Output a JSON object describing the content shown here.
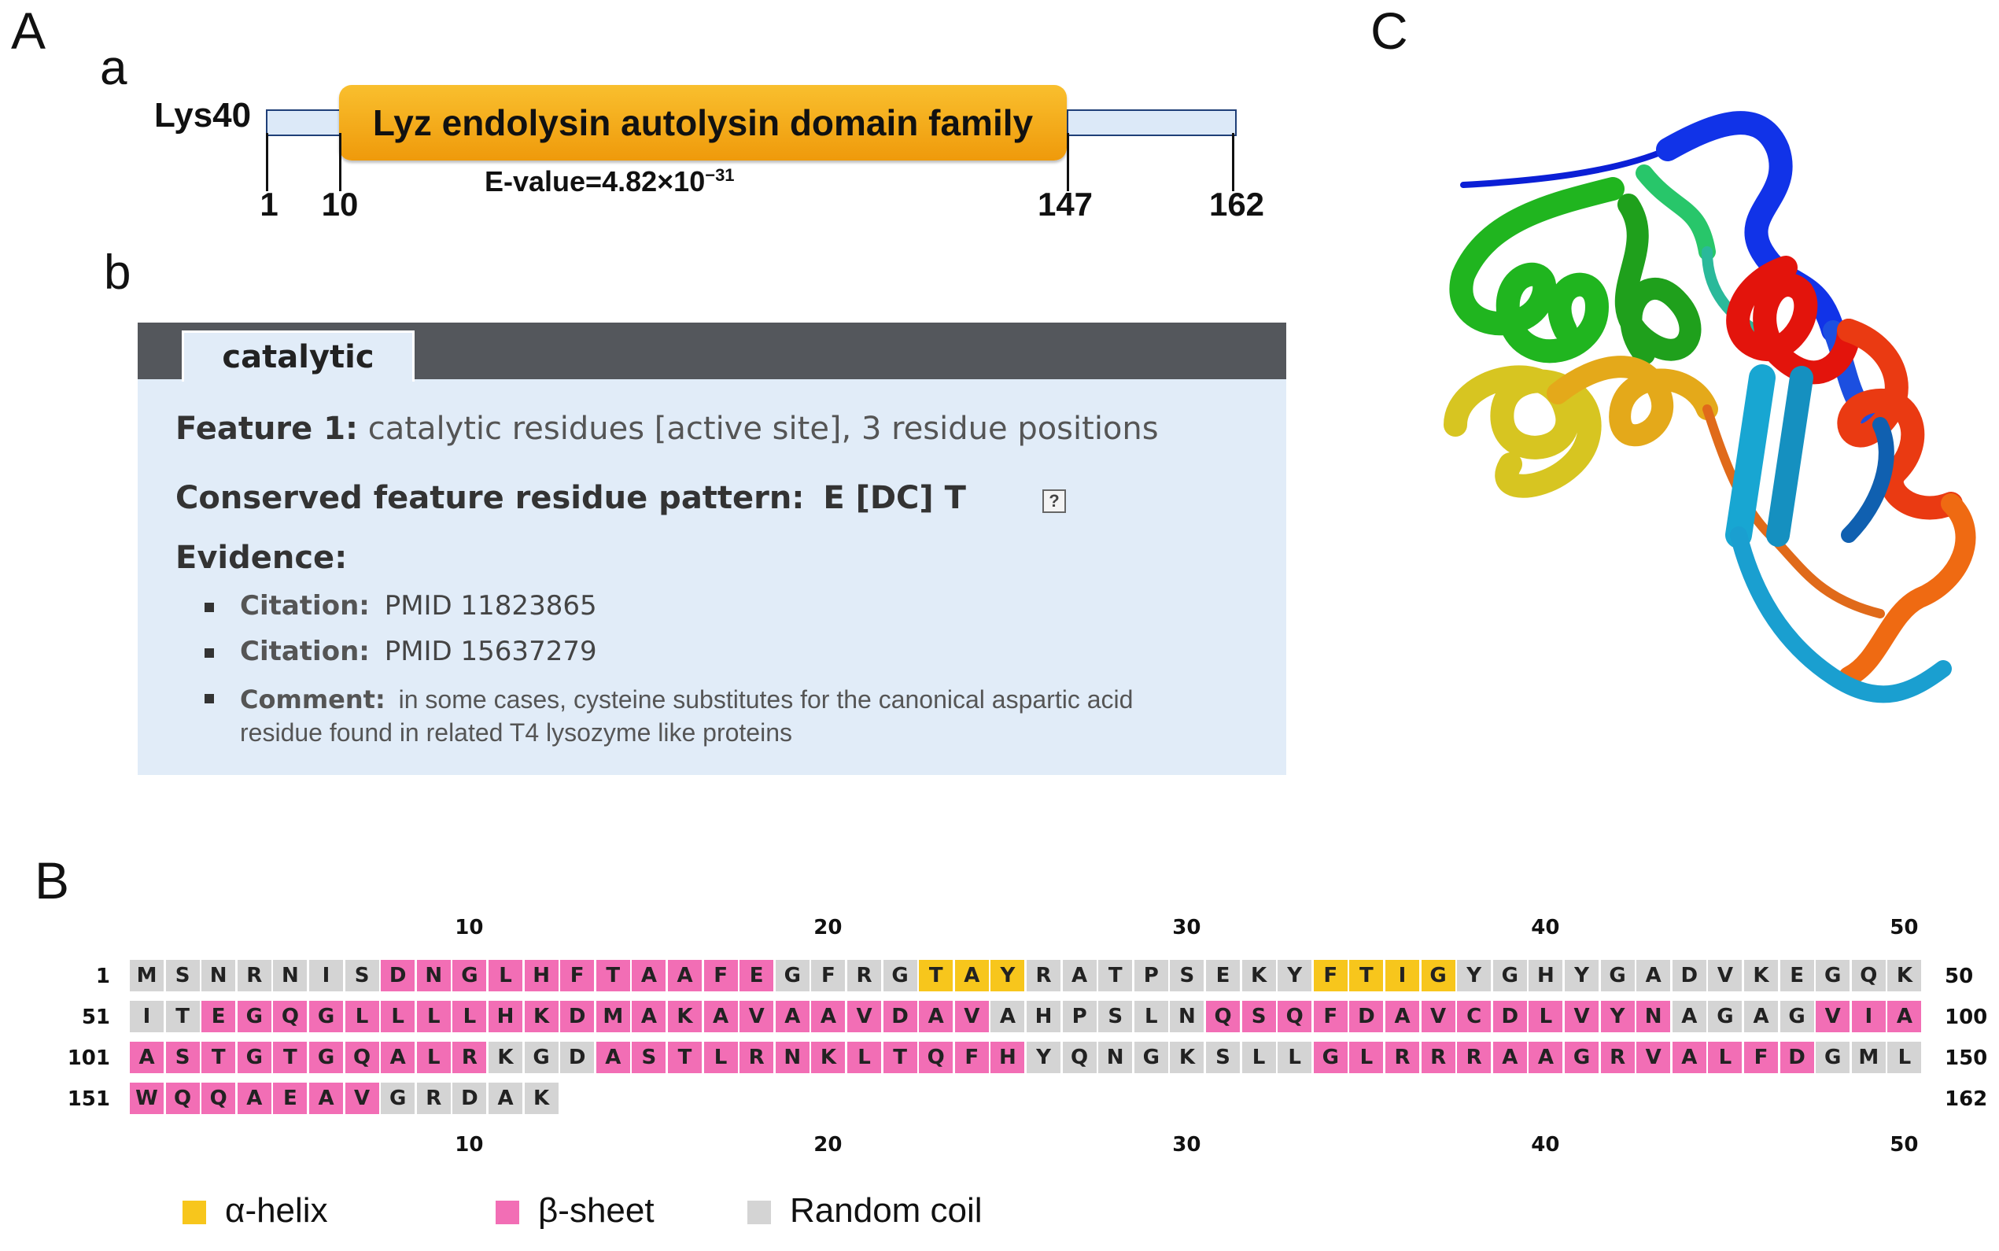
{
  "panels": {
    "A": "A",
    "a": "a",
    "b": "b",
    "B": "B",
    "C": "C"
  },
  "domain_diagram": {
    "protein_name": "Lys40",
    "domain_name": "Lyz endolysin autolysin domain family",
    "evalue_prefix": "E-value=4.82×10",
    "evalue_exponent": "−31",
    "positions": [
      "1",
      "10",
      "147",
      "162"
    ],
    "colors": {
      "domain": "#f5ad14",
      "flank": "#dce9f8"
    }
  },
  "feature": {
    "tab_label": "catalytic",
    "feature_title": "Feature 1:",
    "feature_desc": "catalytic residues [active site], 3 residue positions",
    "pattern_label": "Conserved feature residue pattern:",
    "pattern_value": "E [DC] T",
    "help_icon": "?",
    "evidence_label": "Evidence:",
    "evidence": [
      {
        "label": "Citation:",
        "text": "PMID 11823865"
      },
      {
        "label": "Citation:",
        "text": "PMID 15637279"
      },
      {
        "label": "Comment:",
        "text": "in some cases, cysteine substitutes for the canonical aspartic acid",
        "text2": "residue found in related T4 lysozyme like proteins"
      }
    ]
  },
  "sequence": {
    "ruler": [
      "10",
      "20",
      "30",
      "40",
      "50"
    ],
    "rows": [
      {
        "start": "1",
        "end": "50",
        "residues": "MSNRNISDNGLHFTAAFEGFRGTAYRATPSEKYFTIGYGHYGADVKEGQK",
        "structure": "CCCCCCCEEEEEEEEEEECCCCHHHCCCCCCCCHHHHCCCCCCCCCCCCC"
      },
      {
        "start": "51",
        "end": "100",
        "residues": "ITEGQGLLLLHKDMAKAVAAVDAVAHPSLNQSQFDAVCDLVYNAGAGVIA",
        "structure": "CCEEEEEEEEEEEEEEEEEEEEEECCCCCCEEEEEEEEEEEEECCCCEEE"
      },
      {
        "start": "101",
        "end": "150",
        "residues": "ASTGTGQALRKGDASTLRNKLTQFHYQNGKSLLGLRRRAAGRVALFDGML",
        "structure": "EEEEEEEEEECCCEEEEEEEEEEEECCCCCCCCEEEEEEEEEEEEEECCC"
      },
      {
        "start": "151",
        "end": "162",
        "residues": "WQQAEAVGRDAK",
        "structure": "EEEEEEECCCCC"
      }
    ],
    "legend": [
      {
        "key": "H",
        "label": "α-helix",
        "color": "#f7c61c"
      },
      {
        "key": "E",
        "label": "β-sheet",
        "color": "#f26eb5"
      },
      {
        "key": "C",
        "label": "Random coil",
        "color": "#d4d4d4"
      }
    ]
  }
}
